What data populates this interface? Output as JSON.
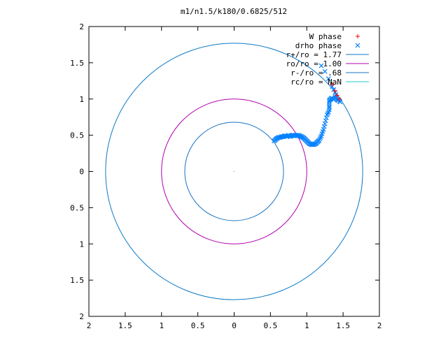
{
  "chart_data": {
    "type": "scatter",
    "title": "m1/n1.5/k180/0.6825/512",
    "xlabel": "",
    "ylabel": "",
    "xlim": [
      -2,
      2
    ],
    "ylim": [
      -2,
      2
    ],
    "x_ticks": [
      -2,
      -1.5,
      -1,
      -0.5,
      0,
      0.5,
      1,
      1.5,
      2
    ],
    "y_ticks": [
      -2,
      -1.5,
      -1,
      -0.5,
      0,
      0.5,
      1,
      1.5,
      2
    ],
    "x_tick_labels": [
      "2",
      "1.5",
      "1",
      "0.5",
      "0",
      "0.5",
      "1",
      "1.5",
      "2"
    ],
    "y_tick_labels": [
      "2",
      "1.5",
      "1",
      "0.5",
      "0",
      "0.5",
      "1",
      "1.5",
      "2"
    ],
    "grid": false,
    "legend_position": "top-right",
    "series": [
      {
        "name": "W phase",
        "kind": "points",
        "marker": "plus",
        "color": "#ff0000",
        "points": [
          [
            1.35,
            1.2
          ],
          [
            1.39,
            1.11
          ],
          [
            1.42,
            1.05
          ],
          [
            1.45,
            1.0
          ]
        ]
      },
      {
        "name": "drho phase",
        "kind": "points",
        "marker": "cross",
        "color": "#0080ff",
        "points": [
          [
            0.55,
            0.42
          ],
          [
            0.56,
            0.43
          ],
          [
            0.57,
            0.44
          ],
          [
            0.58,
            0.45
          ],
          [
            0.59,
            0.46
          ],
          [
            0.6,
            0.46
          ],
          [
            0.61,
            0.47
          ],
          [
            0.62,
            0.47
          ],
          [
            0.63,
            0.47
          ],
          [
            0.64,
            0.47
          ],
          [
            0.65,
            0.48
          ],
          [
            0.66,
            0.48
          ],
          [
            0.67,
            0.48
          ],
          [
            0.68,
            0.48
          ],
          [
            0.69,
            0.49
          ],
          [
            0.7,
            0.49
          ],
          [
            0.71,
            0.49
          ],
          [
            0.72,
            0.49
          ],
          [
            0.73,
            0.48
          ],
          [
            0.74,
            0.49
          ],
          [
            0.75,
            0.5
          ],
          [
            0.76,
            0.49
          ],
          [
            0.77,
            0.48
          ],
          [
            0.78,
            0.49
          ],
          [
            0.79,
            0.5
          ],
          [
            0.8,
            0.49
          ],
          [
            0.81,
            0.5
          ],
          [
            0.82,
            0.5
          ],
          [
            0.83,
            0.49
          ],
          [
            0.84,
            0.5
          ],
          [
            0.85,
            0.5
          ],
          [
            0.86,
            0.5
          ],
          [
            0.87,
            0.49
          ],
          [
            0.88,
            0.5
          ],
          [
            0.89,
            0.5
          ],
          [
            0.9,
            0.49
          ],
          [
            0.91,
            0.49
          ],
          [
            0.92,
            0.48
          ],
          [
            0.93,
            0.48
          ],
          [
            0.94,
            0.47
          ],
          [
            0.95,
            0.47
          ],
          [
            0.96,
            0.46
          ],
          [
            0.97,
            0.45
          ],
          [
            0.98,
            0.44
          ],
          [
            0.99,
            0.43
          ],
          [
            1.0,
            0.42
          ],
          [
            1.01,
            0.41
          ],
          [
            1.02,
            0.4
          ],
          [
            1.03,
            0.39
          ],
          [
            1.04,
            0.38
          ],
          [
            1.05,
            0.38
          ],
          [
            1.06,
            0.37
          ],
          [
            1.07,
            0.37
          ],
          [
            1.08,
            0.37
          ],
          [
            1.09,
            0.37
          ],
          [
            1.1,
            0.37
          ],
          [
            1.11,
            0.38
          ],
          [
            1.12,
            0.38
          ],
          [
            1.13,
            0.39
          ],
          [
            1.14,
            0.4
          ],
          [
            1.15,
            0.41
          ],
          [
            1.16,
            0.42
          ],
          [
            1.17,
            0.43
          ],
          [
            1.18,
            0.45
          ],
          [
            1.19,
            0.47
          ],
          [
            1.2,
            0.49
          ],
          [
            1.21,
            0.52
          ],
          [
            1.22,
            0.55
          ],
          [
            1.23,
            0.58
          ],
          [
            1.24,
            0.62
          ],
          [
            1.25,
            0.66
          ],
          [
            1.26,
            0.7
          ],
          [
            1.27,
            0.74
          ],
          [
            1.28,
            0.78
          ],
          [
            1.29,
            0.8
          ],
          [
            1.3,
            0.82
          ],
          [
            1.31,
            0.85
          ],
          [
            1.31,
            0.88
          ],
          [
            1.31,
            0.9
          ],
          [
            1.31,
            0.93
          ],
          [
            1.31,
            0.96
          ],
          [
            1.31,
            0.98
          ],
          [
            1.32,
            0.99
          ],
          [
            1.33,
            1.0
          ],
          [
            1.34,
            1.01
          ],
          [
            1.35,
            1.01
          ],
          [
            1.36,
            1.0
          ],
          [
            1.37,
            0.99
          ],
          [
            1.38,
            1.01
          ],
          [
            1.39,
            1.03
          ],
          [
            1.4,
            1.02
          ],
          [
            1.41,
            1.0
          ],
          [
            1.42,
            0.99
          ],
          [
            1.43,
            0.98
          ],
          [
            1.44,
            0.99
          ],
          [
            1.45,
            0.97
          ],
          [
            1.46,
            0.96
          ],
          [
            1.4,
            1.06
          ],
          [
            1.39,
            1.09
          ],
          [
            1.37,
            1.13
          ],
          [
            1.35,
            1.17
          ],
          [
            1.3,
            1.28
          ],
          [
            1.25,
            1.38
          ],
          [
            1.2,
            1.46
          ]
        ]
      },
      {
        "name": "r+/ro = 1.77",
        "kind": "circle",
        "radius": 1.77,
        "color": "#0d7ac7"
      },
      {
        "name": "ro/ro = 1.00",
        "kind": "circle",
        "radius": 1.0,
        "color": "#b000b0"
      },
      {
        "name": "r-/ro = .68",
        "kind": "circle",
        "radius": 0.68,
        "color": "#1a73c0"
      },
      {
        "name": "rc/ro = NaN",
        "kind": "circle",
        "radius": null,
        "color": "#1fc9c9"
      }
    ]
  }
}
